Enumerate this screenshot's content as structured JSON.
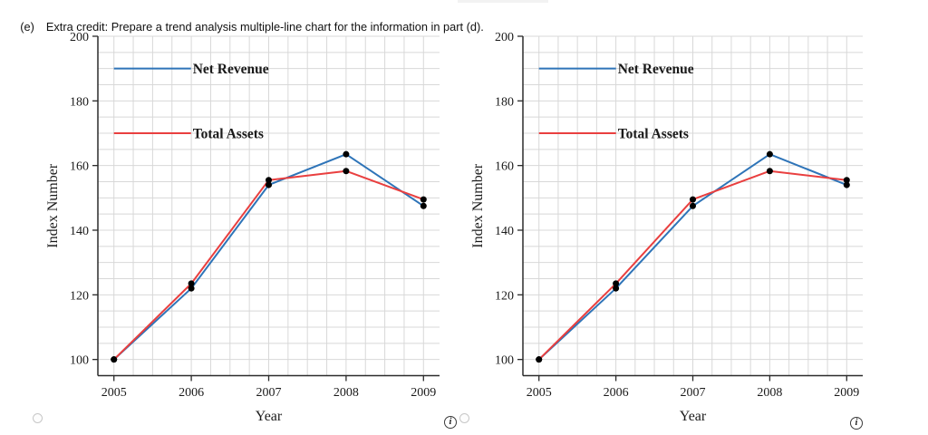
{
  "heading": {
    "item_label": "(e)",
    "text": "Extra credit: Prepare a trend analysis multiple-line chart for the information in part (d)."
  },
  "colors": {
    "net_revenue_blue": "#2e74b8",
    "total_assets_red": "#e93f3f",
    "grid_gray": "#d8d8d8",
    "axis_dark": "#2b2b2b",
    "point_black": "#000000"
  },
  "chart_data": [
    {
      "id": "option-a",
      "type": "line",
      "title": "",
      "xlabel": "Year",
      "ylabel": "Index Number",
      "x": [
        2005,
        2006,
        2007,
        2008,
        2009
      ],
      "ylim": [
        95,
        200
      ],
      "yticks": [
        100,
        120,
        140,
        160,
        180,
        200
      ],
      "grid": true,
      "legend_position": "upper-left-inside",
      "series": [
        {
          "name": "Net Revenue",
          "color": "#2e74b8",
          "legend_y": 190,
          "values": [
            100,
            122,
            154,
            163.5,
            147.5
          ]
        },
        {
          "name": "Total Assets",
          "color": "#e93f3f",
          "legend_y": 170,
          "values": [
            100,
            123.5,
            155.5,
            158.3,
            149.5
          ]
        }
      ]
    },
    {
      "id": "option-b",
      "type": "line",
      "title": "",
      "xlabel": "Year",
      "ylabel": "Index Number",
      "x": [
        2005,
        2006,
        2007,
        2008,
        2009
      ],
      "ylim": [
        95,
        200
      ],
      "yticks": [
        100,
        120,
        140,
        160,
        180,
        200
      ],
      "grid": true,
      "legend_position": "upper-left-inside",
      "series": [
        {
          "name": "Net Revenue",
          "color": "#2e74b8",
          "legend_y": 190,
          "values": [
            100,
            122,
            147.5,
            163.5,
            154
          ]
        },
        {
          "name": "Total Assets",
          "color": "#e93f3f",
          "legend_y": 170,
          "values": [
            100,
            123.5,
            149.5,
            158.3,
            155.5
          ]
        }
      ]
    }
  ],
  "controls": {
    "info_icon_glyph": "i"
  }
}
